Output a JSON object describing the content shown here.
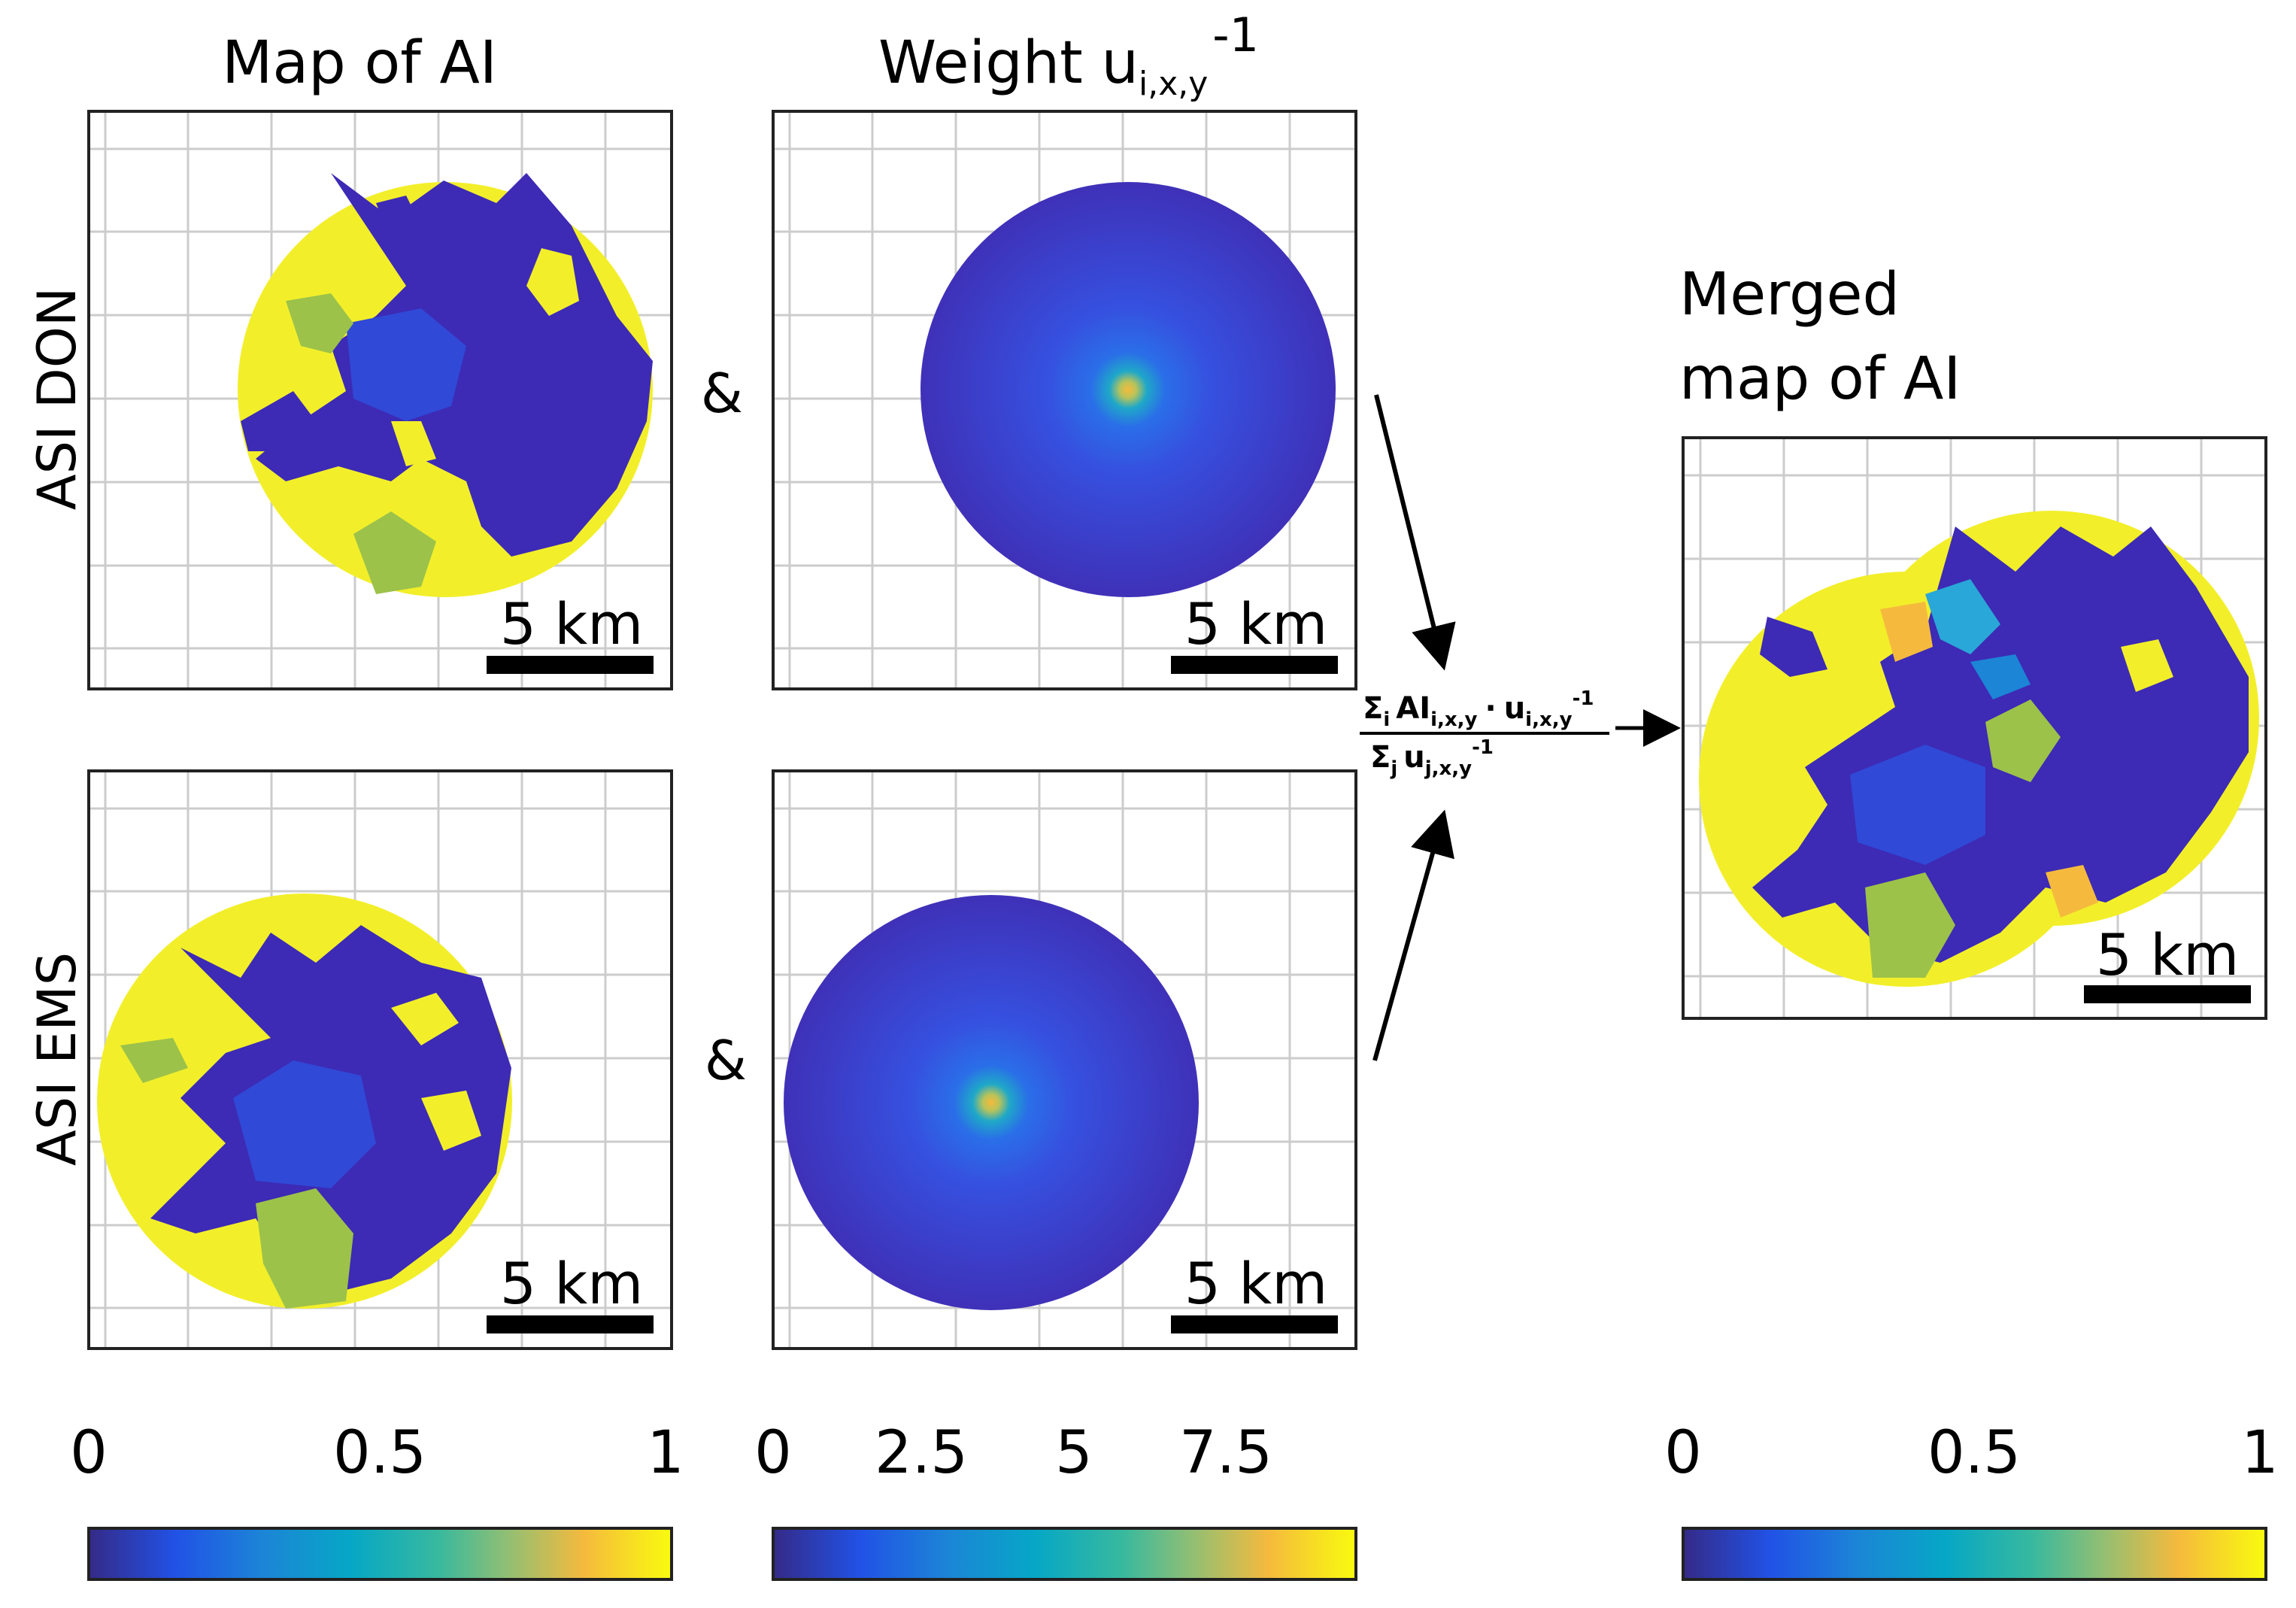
{
  "titles": {
    "col1": "Map of AI",
    "col2": "Weight u",
    "col2_sub": "i,x,y",
    "col2_sup": "-1",
    "merged_line1": "Merged",
    "merged_line2": "map of AI"
  },
  "rows": {
    "row1": "ASI DON",
    "row2": "ASI EMS"
  },
  "connector": "&",
  "scalebar": "5 km",
  "formula": {
    "sigma": "Σ",
    "num_sub_i": "i",
    "num_ai": "AI",
    "num_ai_sub": "i,x,y",
    "dot": "·",
    "num_u": "u",
    "num_u_sub": "i,x,y",
    "num_u_sup": "-1",
    "den_sub_j": "j",
    "den_u": "u",
    "den_u_sub": "j,x,y",
    "den_u_sup": "-1"
  },
  "colorbars": [
    {
      "ticks": [
        "0",
        "0.5",
        "1"
      ],
      "values": [
        0,
        0.5,
        1
      ]
    },
    {
      "ticks": [
        "0",
        "2.5",
        "5",
        "7.5"
      ],
      "values": [
        0,
        2.5,
        5,
        7.5
      ],
      "max": 9.2
    },
    {
      "ticks": [
        "0",
        "0.5",
        "1"
      ],
      "values": [
        0,
        0.5,
        1
      ]
    }
  ],
  "colors": {
    "dark_blue": "#3d2ab5",
    "blue": "#3049d6",
    "yellow": "#f2ef2a",
    "green": "#9cc24a",
    "frame": "#222222",
    "grid": "#cccccc"
  }
}
